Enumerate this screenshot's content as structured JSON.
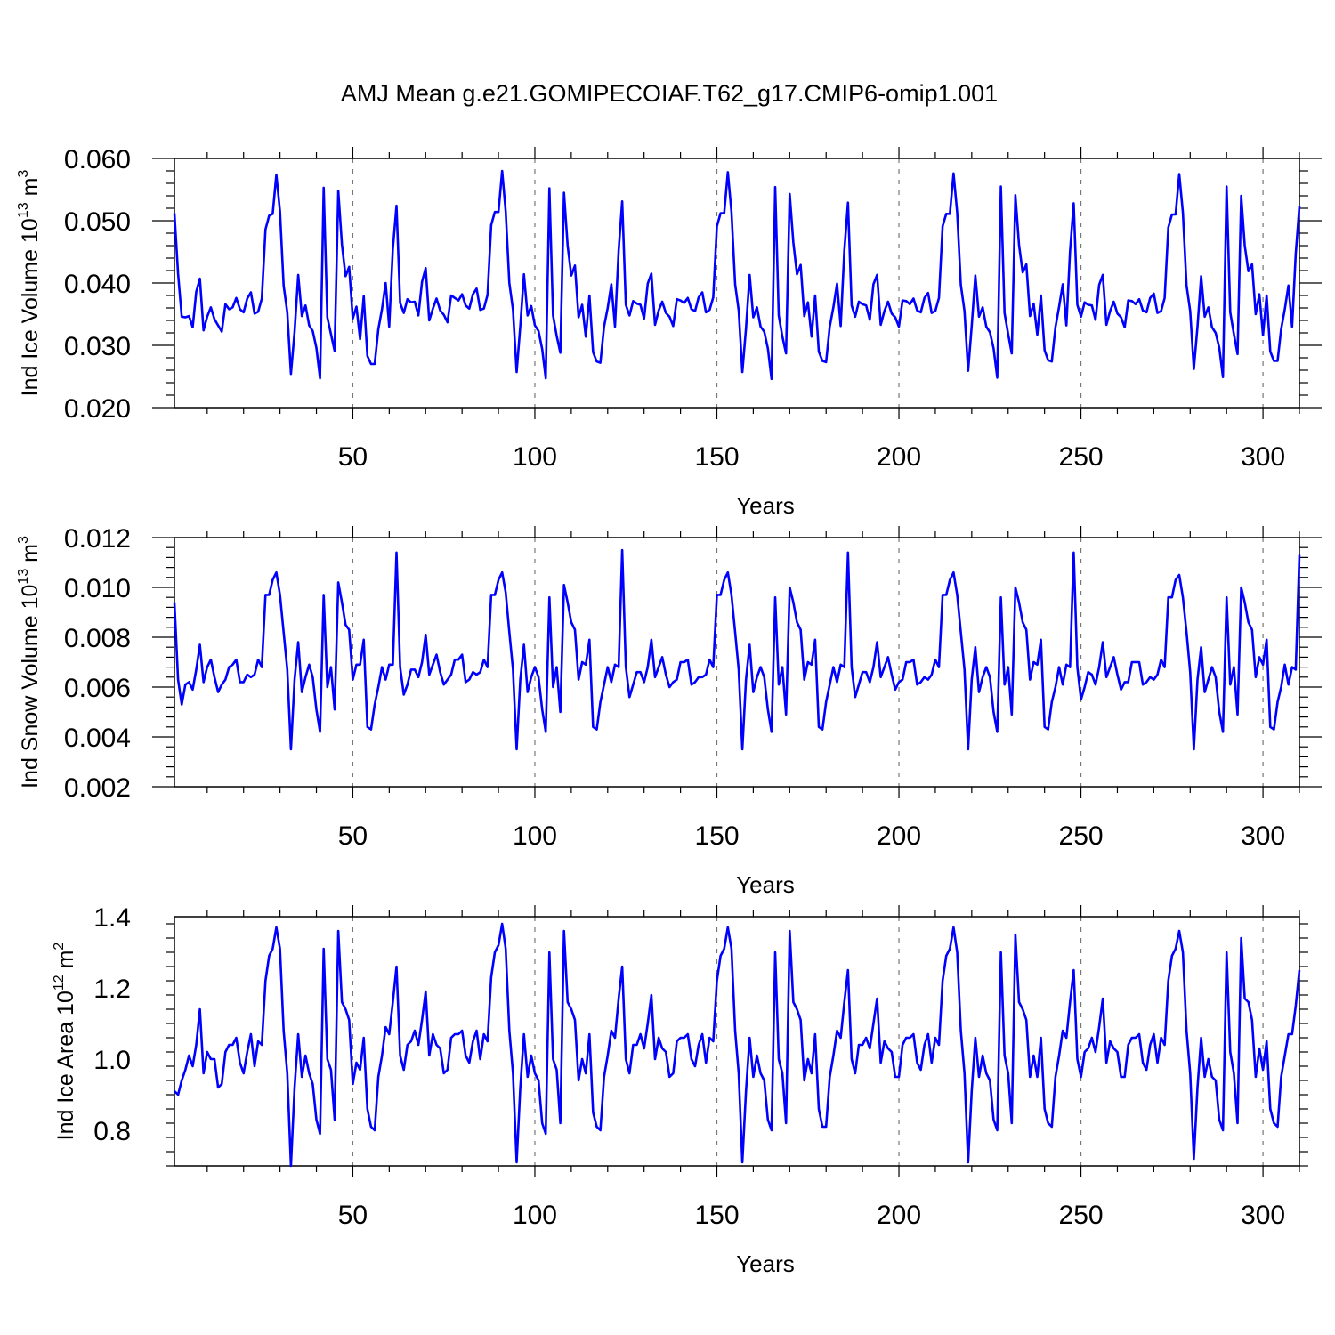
{
  "title": "AMJ Mean g.e21.GOMIPECOIAF.T62_g17.CMIP6-omip1.001",
  "line_color": "#0000ff",
  "chart_data": [
    {
      "type": "line",
      "ylabel_text": "Ind Ice Volume 10",
      "ylabel_exp": "13",
      "ylabel_unit": "m",
      "ylabel_unit_exp": "3",
      "xlabel": "Years",
      "xlim": [
        1,
        310
      ],
      "ylim": [
        0.02,
        0.06
      ],
      "xticks": [
        50,
        100,
        150,
        200,
        250,
        300
      ],
      "yticks": [
        "0.020",
        "0.030",
        "0.040",
        "0.050",
        "0.060"
      ],
      "grid": "vertical dashed at major x ticks",
      "x_start": 1,
      "values": [
        0.0512,
        0.0415,
        0.0346,
        0.0345,
        0.0347,
        0.0329,
        0.0386,
        0.0407,
        0.0324,
        0.0346,
        0.0361,
        0.0342,
        0.0332,
        0.0322,
        0.0366,
        0.0358,
        0.0361,
        0.0376,
        0.0358,
        0.0353,
        0.0375,
        0.0385,
        0.0351,
        0.0354,
        0.0375,
        0.0486,
        0.0508,
        0.0511,
        0.0574,
        0.0515,
        0.0396,
        0.0353,
        0.0254,
        0.0322,
        0.0413,
        0.0347,
        0.0364,
        0.0332,
        0.0323,
        0.0296,
        0.0247,
        0.0553,
        0.0345,
        0.0318,
        0.0291,
        0.0548,
        0.0462,
        0.0411,
        0.0426,
        0.0343,
        0.0362,
        0.031,
        0.0379,
        0.0283,
        0.027,
        0.027,
        0.0326,
        0.0358,
        0.04,
        0.033,
        0.0455,
        0.0524,
        0.0368,
        0.0352,
        0.0374,
        0.0369,
        0.037,
        0.0348,
        0.0402,
        0.0424,
        0.034,
        0.0359,
        0.0375,
        0.0356,
        0.0349,
        0.0337,
        0.038,
        0.0376,
        0.0372,
        0.0382,
        0.0364,
        0.0359,
        0.0382,
        0.0391,
        0.0357,
        0.0359,
        0.0381,
        0.0493,
        0.0514,
        0.0514,
        0.058,
        0.0515,
        0.04,
        0.0357,
        0.0257,
        0.0331,
        0.0414,
        0.0348,
        0.0363,
        0.0332,
        0.0323,
        0.0294,
        0.0247,
        0.0552,
        0.0348,
        0.0315,
        0.0288,
        0.0545,
        0.046,
        0.0412,
        0.0428,
        0.0345,
        0.0365,
        0.0314,
        0.038,
        0.0289,
        0.0274,
        0.0272,
        0.033,
        0.036,
        0.0398,
        0.033,
        0.0452,
        0.0531,
        0.0365,
        0.0348,
        0.0371,
        0.0367,
        0.0365,
        0.0343,
        0.0399,
        0.0415,
        0.0333,
        0.0356,
        0.037,
        0.0352,
        0.0346,
        0.0331,
        0.0374,
        0.0372,
        0.0368,
        0.0376,
        0.0358,
        0.0355,
        0.0377,
        0.0385,
        0.0353,
        0.0357,
        0.0377,
        0.0491,
        0.0512,
        0.0512,
        0.0578,
        0.0514,
        0.0398,
        0.0356,
        0.0257,
        0.0327,
        0.0413,
        0.0345,
        0.0361,
        0.033,
        0.0322,
        0.0295,
        0.0246,
        0.0554,
        0.0348,
        0.0314,
        0.0287,
        0.0543,
        0.0465,
        0.0414,
        0.0429,
        0.0347,
        0.0369,
        0.0314,
        0.038,
        0.029,
        0.0275,
        0.0273,
        0.033,
        0.0361,
        0.0399,
        0.0331,
        0.0452,
        0.0529,
        0.0364,
        0.0346,
        0.037,
        0.0366,
        0.0364,
        0.0341,
        0.0398,
        0.0413,
        0.0333,
        0.0355,
        0.037,
        0.0351,
        0.0345,
        0.033,
        0.0372,
        0.0371,
        0.0366,
        0.0375,
        0.0356,
        0.0353,
        0.0376,
        0.0384,
        0.0352,
        0.0355,
        0.0376,
        0.0491,
        0.0511,
        0.0511,
        0.0576,
        0.0513,
        0.0397,
        0.0355,
        0.0259,
        0.0331,
        0.0412,
        0.0346,
        0.0361,
        0.033,
        0.0321,
        0.0295,
        0.0248,
        0.0555,
        0.0352,
        0.0318,
        0.0287,
        0.0541,
        0.0461,
        0.0417,
        0.043,
        0.0347,
        0.0367,
        0.0317,
        0.038,
        0.0292,
        0.0276,
        0.0274,
        0.0329,
        0.0362,
        0.0398,
        0.0332,
        0.0451,
        0.0528,
        0.0365,
        0.0346,
        0.0369,
        0.0365,
        0.0364,
        0.0341,
        0.0397,
        0.0413,
        0.0333,
        0.0355,
        0.037,
        0.0351,
        0.0345,
        0.0329,
        0.0372,
        0.0371,
        0.0366,
        0.0374,
        0.0356,
        0.0353,
        0.0376,
        0.0383,
        0.0352,
        0.0355,
        0.0376,
        0.0489,
        0.051,
        0.051,
        0.0575,
        0.0513,
        0.0396,
        0.0355,
        0.0262,
        0.033,
        0.0411,
        0.0346,
        0.0361,
        0.0329,
        0.032,
        0.0296,
        0.0249,
        0.0555,
        0.0353,
        0.0318,
        0.0286,
        0.054,
        0.046,
        0.0419,
        0.043,
        0.035,
        0.0382,
        0.0316,
        0.038,
        0.029,
        0.0275,
        0.0275,
        0.0326,
        0.0358,
        0.0396,
        0.033,
        0.0447,
        0.0523
      ]
    },
    {
      "type": "line",
      "ylabel_text": "Ind Snow Volume 10",
      "ylabel_exp": "13",
      "ylabel_unit": "m",
      "ylabel_unit_exp": "3",
      "xlabel": "Years",
      "xlim": [
        1,
        310
      ],
      "ylim": [
        0.002,
        0.012
      ],
      "xticks": [
        50,
        100,
        150,
        200,
        250,
        300
      ],
      "yticks": [
        "0.002",
        "0.004",
        "0.006",
        "0.008",
        "0.010",
        "0.012"
      ],
      "grid": "vertical dashed at major x ticks",
      "x_start": 1,
      "values": [
        0.0094,
        0.0063,
        0.0053,
        0.0061,
        0.0062,
        0.0059,
        0.0067,
        0.0077,
        0.0062,
        0.0068,
        0.0071,
        0.0064,
        0.0058,
        0.0061,
        0.0063,
        0.0068,
        0.0069,
        0.0071,
        0.0062,
        0.0062,
        0.0065,
        0.0064,
        0.0065,
        0.0071,
        0.0068,
        0.0097,
        0.0097,
        0.0103,
        0.0106,
        0.0097,
        0.0082,
        0.0067,
        0.0035,
        0.0063,
        0.0078,
        0.0058,
        0.0064,
        0.0069,
        0.0064,
        0.0051,
        0.0042,
        0.0097,
        0.006,
        0.0068,
        0.0051,
        0.0102,
        0.0094,
        0.0085,
        0.0083,
        0.0063,
        0.0069,
        0.0069,
        0.0079,
        0.0044,
        0.0043,
        0.0053,
        0.006,
        0.0068,
        0.0063,
        0.0069,
        0.0069,
        0.0114,
        0.0068,
        0.0057,
        0.0061,
        0.0067,
        0.0067,
        0.0064,
        0.007,
        0.0081,
        0.0065,
        0.0069,
        0.0073,
        0.0066,
        0.0061,
        0.0063,
        0.0065,
        0.0071,
        0.0071,
        0.0073,
        0.0062,
        0.0063,
        0.0066,
        0.0065,
        0.0066,
        0.0071,
        0.0068,
        0.0097,
        0.0097,
        0.0103,
        0.0106,
        0.0098,
        0.0082,
        0.0067,
        0.0035,
        0.0063,
        0.0077,
        0.0058,
        0.0064,
        0.0068,
        0.0064,
        0.0051,
        0.0042,
        0.0096,
        0.006,
        0.0068,
        0.005,
        0.0101,
        0.0094,
        0.0086,
        0.0083,
        0.0063,
        0.007,
        0.0069,
        0.0079,
        0.0044,
        0.0043,
        0.0054,
        0.0061,
        0.0068,
        0.0062,
        0.0069,
        0.0068,
        0.0115,
        0.0068,
        0.0056,
        0.0061,
        0.0066,
        0.0066,
        0.0062,
        0.0068,
        0.0079,
        0.0064,
        0.0068,
        0.0072,
        0.0065,
        0.006,
        0.0062,
        0.0063,
        0.007,
        0.007,
        0.0071,
        0.0061,
        0.0062,
        0.0064,
        0.0064,
        0.0065,
        0.0071,
        0.0068,
        0.0097,
        0.0097,
        0.0103,
        0.0106,
        0.0097,
        0.0082,
        0.0067,
        0.0035,
        0.0063,
        0.0077,
        0.0058,
        0.0064,
        0.0068,
        0.0064,
        0.0051,
        0.0042,
        0.0096,
        0.0061,
        0.0068,
        0.0049,
        0.01,
        0.0094,
        0.0086,
        0.0083,
        0.0063,
        0.007,
        0.0069,
        0.0079,
        0.0044,
        0.0043,
        0.0054,
        0.0061,
        0.0068,
        0.0062,
        0.0069,
        0.0068,
        0.0114,
        0.0068,
        0.0056,
        0.0061,
        0.0066,
        0.0066,
        0.0062,
        0.0068,
        0.0078,
        0.0064,
        0.0068,
        0.0072,
        0.0065,
        0.0059,
        0.0062,
        0.0063,
        0.007,
        0.007,
        0.0071,
        0.0061,
        0.0062,
        0.0064,
        0.0063,
        0.0065,
        0.0071,
        0.0068,
        0.0097,
        0.0097,
        0.0103,
        0.0106,
        0.0097,
        0.0082,
        0.0067,
        0.0035,
        0.0063,
        0.0076,
        0.0058,
        0.0064,
        0.0068,
        0.0064,
        0.005,
        0.0042,
        0.0096,
        0.0061,
        0.0068,
        0.0049,
        0.01,
        0.0094,
        0.0086,
        0.0083,
        0.0063,
        0.007,
        0.0069,
        0.0079,
        0.0044,
        0.0043,
        0.0054,
        0.006,
        0.0068,
        0.0061,
        0.0069,
        0.0068,
        0.0114,
        0.0068,
        0.0055,
        0.006,
        0.0066,
        0.0065,
        0.0061,
        0.0068,
        0.0078,
        0.0064,
        0.0068,
        0.0072,
        0.0065,
        0.0059,
        0.0062,
        0.0062,
        0.007,
        0.007,
        0.007,
        0.0061,
        0.0062,
        0.0064,
        0.0063,
        0.0065,
        0.0071,
        0.0068,
        0.0096,
        0.0096,
        0.0103,
        0.0105,
        0.0096,
        0.0082,
        0.0066,
        0.0035,
        0.0063,
        0.0076,
        0.0058,
        0.0063,
        0.0068,
        0.0064,
        0.005,
        0.0042,
        0.0096,
        0.0061,
        0.0068,
        0.0049,
        0.01,
        0.0094,
        0.0086,
        0.0083,
        0.0064,
        0.0072,
        0.0069,
        0.0079,
        0.0044,
        0.0043,
        0.0054,
        0.006,
        0.0069,
        0.0061,
        0.0068,
        0.0067,
        0.0113
      ]
    },
    {
      "type": "line",
      "ylabel_text": "Ind Ice Area 10",
      "ylabel_exp": "12",
      "ylabel_unit": "m",
      "ylabel_unit_exp": "2",
      "xlabel": "Years",
      "xlim": [
        1,
        310
      ],
      "ylim": [
        0.7,
        1.4
      ],
      "xticks": [
        50,
        100,
        150,
        200,
        250,
        300
      ],
      "yticks": [
        "0.8",
        "1.0",
        "1.2",
        "1.4"
      ],
      "grid": "vertical dashed at major x ticks",
      "x_start": 1,
      "values": [
        0.91,
        0.9,
        0.94,
        0.97,
        1.01,
        0.98,
        1.04,
        1.14,
        0.96,
        1.02,
        1.0,
        1.0,
        0.92,
        0.93,
        1.02,
        1.04,
        1.04,
        1.06,
        0.99,
        0.96,
        1.02,
        1.07,
        0.98,
        1.05,
        1.04,
        1.22,
        1.29,
        1.31,
        1.37,
        1.31,
        1.08,
        0.96,
        0.7,
        0.92,
        1.07,
        0.95,
        1.01,
        0.96,
        0.93,
        0.83,
        0.79,
        1.31,
        1.0,
        0.97,
        0.83,
        1.36,
        1.16,
        1.14,
        1.11,
        0.93,
        0.99,
        0.97,
        1.06,
        0.86,
        0.81,
        0.8,
        0.95,
        1.01,
        1.09,
        1.07,
        1.16,
        1.26,
        1.01,
        0.97,
        1.04,
        1.05,
        1.08,
        1.04,
        1.11,
        1.19,
        1.01,
        1.07,
        1.04,
        1.03,
        0.96,
        0.97,
        1.06,
        1.07,
        1.07,
        1.08,
        1.01,
        0.99,
        1.05,
        1.08,
        1.0,
        1.07,
        1.05,
        1.23,
        1.3,
        1.32,
        1.38,
        1.31,
        1.08,
        0.96,
        0.71,
        0.92,
        1.07,
        0.95,
        1.01,
        0.96,
        0.94,
        0.82,
        0.79,
        1.3,
        1.0,
        0.97,
        0.82,
        1.36,
        1.16,
        1.14,
        1.11,
        0.94,
        1.0,
        0.96,
        1.07,
        0.85,
        0.81,
        0.8,
        0.95,
        1.01,
        1.08,
        1.06,
        1.17,
        1.26,
        1.0,
        0.96,
        1.04,
        1.04,
        1.07,
        1.03,
        1.1,
        1.18,
        1.0,
        1.06,
        1.03,
        1.02,
        0.95,
        0.96,
        1.05,
        1.06,
        1.06,
        1.07,
        1.0,
        0.98,
        1.04,
        1.07,
        0.99,
        1.06,
        1.05,
        1.22,
        1.29,
        1.31,
        1.37,
        1.31,
        1.08,
        0.96,
        0.71,
        0.91,
        1.06,
        0.95,
        1.01,
        0.96,
        0.94,
        0.83,
        0.8,
        1.3,
        1.0,
        0.96,
        0.82,
        1.36,
        1.16,
        1.14,
        1.11,
        0.94,
        1.0,
        0.96,
        1.07,
        0.86,
        0.81,
        0.81,
        0.95,
        1.01,
        1.08,
        1.06,
        1.16,
        1.25,
        1.0,
        0.96,
        1.04,
        1.04,
        1.06,
        1.03,
        1.1,
        1.17,
        0.99,
        1.05,
        1.03,
        1.02,
        0.95,
        0.95,
        1.04,
        1.06,
        1.06,
        1.07,
        0.99,
        0.97,
        1.04,
        1.07,
        0.99,
        1.06,
        1.04,
        1.22,
        1.29,
        1.31,
        1.37,
        1.3,
        1.08,
        0.96,
        0.71,
        0.91,
        1.06,
        0.95,
        1.01,
        0.96,
        0.94,
        0.83,
        0.8,
        1.3,
        1.01,
        0.96,
        0.82,
        1.35,
        1.16,
        1.14,
        1.11,
        0.95,
        1.01,
        0.95,
        1.06,
        0.86,
        0.82,
        0.81,
        0.95,
        1.01,
        1.08,
        1.06,
        1.16,
        1.25,
        1.0,
        0.95,
        1.02,
        1.03,
        1.06,
        1.02,
        1.09,
        1.17,
        0.99,
        1.05,
        1.03,
        1.02,
        0.95,
        0.95,
        1.04,
        1.06,
        1.06,
        1.07,
        0.99,
        0.97,
        1.04,
        1.07,
        0.99,
        1.06,
        1.04,
        1.22,
        1.29,
        1.31,
        1.36,
        1.3,
        1.08,
        0.96,
        0.72,
        0.92,
        1.06,
        0.95,
        1.0,
        0.95,
        0.94,
        0.83,
        0.8,
        1.3,
        1.02,
        0.96,
        0.82,
        1.34,
        1.17,
        1.16,
        1.11,
        0.95,
        1.03,
        0.97,
        1.05,
        0.86,
        0.82,
        0.81,
        0.95,
        1.01,
        1.07,
        1.07,
        1.15,
        1.25
      ]
    }
  ]
}
